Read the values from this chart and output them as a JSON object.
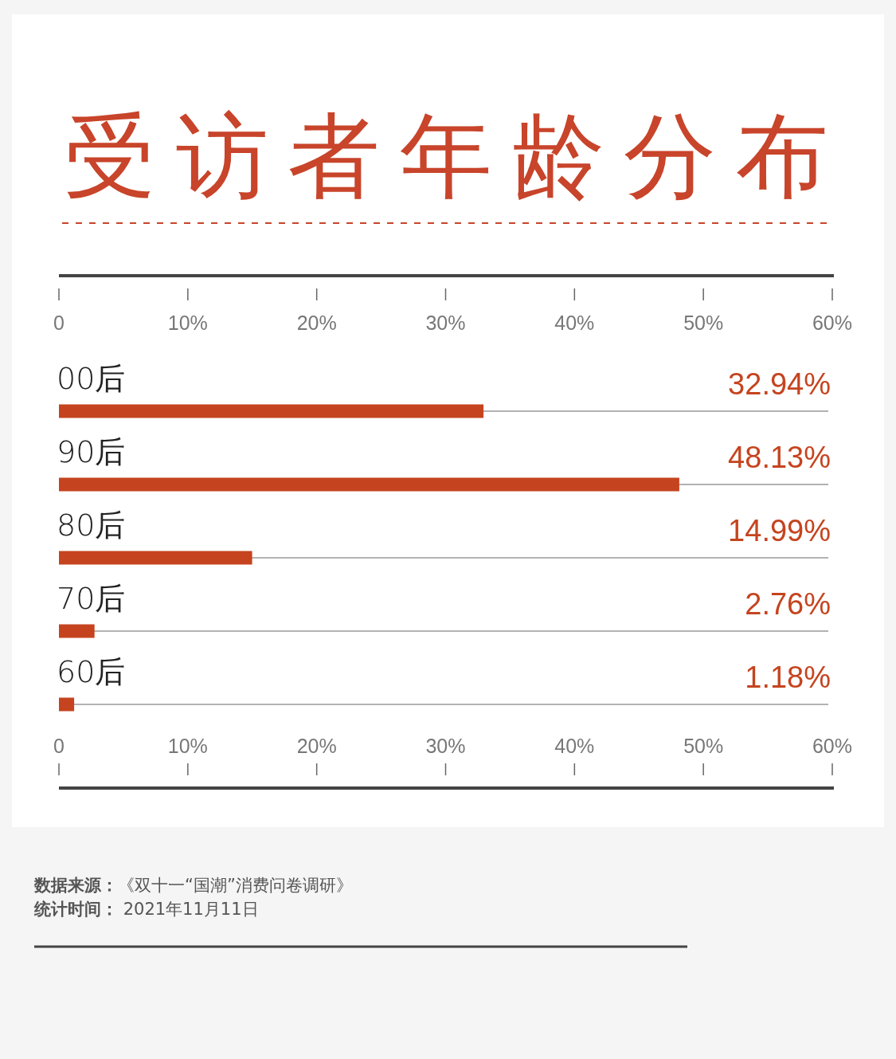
{
  "chart_data": {
    "type": "bar",
    "orientation": "horizontal",
    "title": "受访者年龄分布",
    "categories": [
      "00后",
      "90后",
      "80后",
      "70后",
      "60后"
    ],
    "values": [
      32.94,
      48.13,
      14.99,
      2.76,
      1.18
    ],
    "value_labels": [
      "32.94%",
      "48.13%",
      "14.99%",
      "2.76%",
      "1.18%"
    ],
    "color": "#c5441f",
    "xlim": [
      0,
      60
    ],
    "xticks": [
      0,
      {
        "value": 10,
        "label": "10%"
      },
      {
        "value": 20,
        "label": "20%"
      },
      {
        "value": 30,
        "label": "30%"
      },
      {
        "value": 40,
        "label": "40%"
      },
      {
        "value": 50,
        "label": "50%"
      },
      {
        "value": 60,
        "label": "60%"
      }
    ],
    "x2lim": [
      0,
      60
    ],
    "x2ticks": [
      0,
      {
        "value": 10,
        "label": "10%"
      },
      {
        "value": 20,
        "label": "20%"
      },
      {
        "value": 30,
        "label": "30%"
      },
      {
        "value": 40,
        "label": "40%"
      },
      {
        "value": 50,
        "label": "50%"
      },
      {
        "value": 60,
        "label": "60%"
      }
    ],
    "annotations": [
      "数据来源：《双十一“国潮”消费问卷调研》",
      "统计时间： 2021年11月11日"
    ]
  }
}
